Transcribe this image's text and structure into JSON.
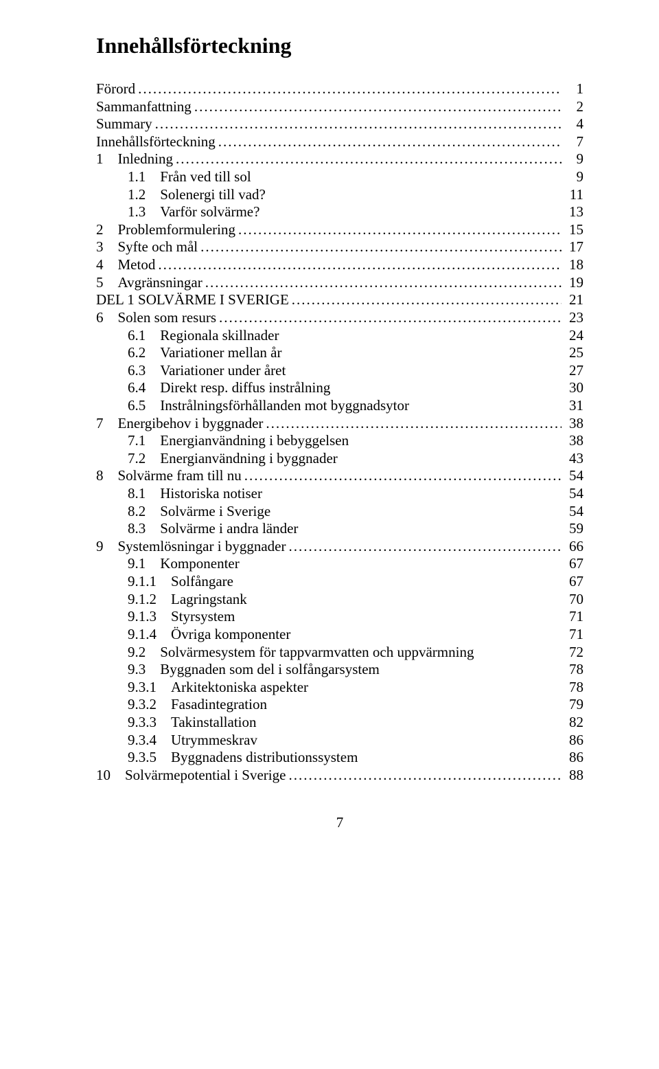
{
  "title": "Innehållsförteckning",
  "footer_page": "7",
  "entries": [
    {
      "label": "Förord",
      "page": "1",
      "level": 0,
      "dots": true
    },
    {
      "label": "Sammanfattning",
      "page": "2",
      "level": 0,
      "dots": true
    },
    {
      "label": "Summary",
      "page": "4",
      "level": 0,
      "dots": true
    },
    {
      "label": "Innehållsförteckning",
      "page": "7",
      "level": 0,
      "dots": true
    },
    {
      "label": "1 Inledning",
      "page": "9",
      "level": 1,
      "dots": true
    },
    {
      "label": "1.1 Från ved till sol",
      "page": "9",
      "level": 2,
      "dots": false
    },
    {
      "label": "1.2 Solenergi till vad?",
      "page": "11",
      "level": 2,
      "dots": false
    },
    {
      "label": "1.3 Varför solvärme?",
      "page": "13",
      "level": 2,
      "dots": false
    },
    {
      "label": "2 Problemformulering",
      "page": "15",
      "level": 1,
      "dots": true
    },
    {
      "label": "3 Syfte och mål",
      "page": "17",
      "level": 1,
      "dots": true
    },
    {
      "label": "4 Metod",
      "page": "18",
      "level": 1,
      "dots": true
    },
    {
      "label": "5 Avgränsningar",
      "page": "19",
      "level": 1,
      "dots": true
    },
    {
      "label": "DEL 1 SOLVÄRME I SVERIGE",
      "page": "21",
      "level": 0,
      "dots": true
    },
    {
      "label": "6 Solen som resurs",
      "page": "23",
      "level": 1,
      "dots": true
    },
    {
      "label": "6.1 Regionala skillnader",
      "page": "24",
      "level": 2,
      "dots": false
    },
    {
      "label": "6.2 Variationer mellan år",
      "page": "25",
      "level": 2,
      "dots": false
    },
    {
      "label": "6.3 Variationer under året",
      "page": "27",
      "level": 2,
      "dots": false
    },
    {
      "label": "6.4 Direkt resp. diffus instrålning",
      "page": "30",
      "level": 2,
      "dots": false
    },
    {
      "label": "6.5 Instrålningsförhållanden mot byggnadsytor",
      "page": "31",
      "level": 2,
      "dots": false
    },
    {
      "label": "7 Energibehov i byggnader",
      "page": "38",
      "level": 1,
      "dots": true
    },
    {
      "label": "7.1 Energianvändning i bebyggelsen",
      "page": "38",
      "level": 2,
      "dots": false
    },
    {
      "label": "7.2 Energianvändning i byggnader",
      "page": "43",
      "level": 2,
      "dots": false
    },
    {
      "label": "8 Solvärme fram till nu",
      "page": "54",
      "level": 1,
      "dots": true
    },
    {
      "label": "8.1 Historiska notiser",
      "page": "54",
      "level": 2,
      "dots": false
    },
    {
      "label": "8.2 Solvärme i Sverige",
      "page": "54",
      "level": 2,
      "dots": false
    },
    {
      "label": "8.3 Solvärme i andra länder",
      "page": "59",
      "level": 2,
      "dots": false
    },
    {
      "label": "9 Systemlösningar i byggnader",
      "page": "66",
      "level": 1,
      "dots": true
    },
    {
      "label": "9.1 Komponenter",
      "page": "67",
      "level": 2,
      "dots": false
    },
    {
      "label": "9.1.1 Solfångare",
      "page": "67",
      "level": 3,
      "dots": false
    },
    {
      "label": "9.1.2 Lagringstank",
      "page": "70",
      "level": 3,
      "dots": false
    },
    {
      "label": "9.1.3 Styrsystem",
      "page": "71",
      "level": 3,
      "dots": false
    },
    {
      "label": "9.1.4 Övriga komponenter",
      "page": "71",
      "level": 3,
      "dots": false
    },
    {
      "label": "9.2 Solvärmesystem för tappvarmvatten och uppvärmning",
      "page": "72",
      "level": 2,
      "dots": false
    },
    {
      "label": "9.3 Byggnaden som del i solfångarsystem",
      "page": "78",
      "level": 2,
      "dots": false
    },
    {
      "label": "9.3.1 Arkitektoniska aspekter",
      "page": "78",
      "level": 3,
      "dots": false
    },
    {
      "label": "9.3.2 Fasadintegration",
      "page": "79",
      "level": 3,
      "dots": false
    },
    {
      "label": "9.3.3 Takinstallation",
      "page": "82",
      "level": 3,
      "dots": false
    },
    {
      "label": "9.3.4 Utrymmeskrav",
      "page": "86",
      "level": 3,
      "dots": false
    },
    {
      "label": "9.3.5 Byggnadens distributionssystem",
      "page": "86",
      "level": 3,
      "dots": false
    },
    {
      "label": "10 Solvärmepotential i Sverige",
      "page": "88",
      "level": 1,
      "dots": true
    }
  ]
}
